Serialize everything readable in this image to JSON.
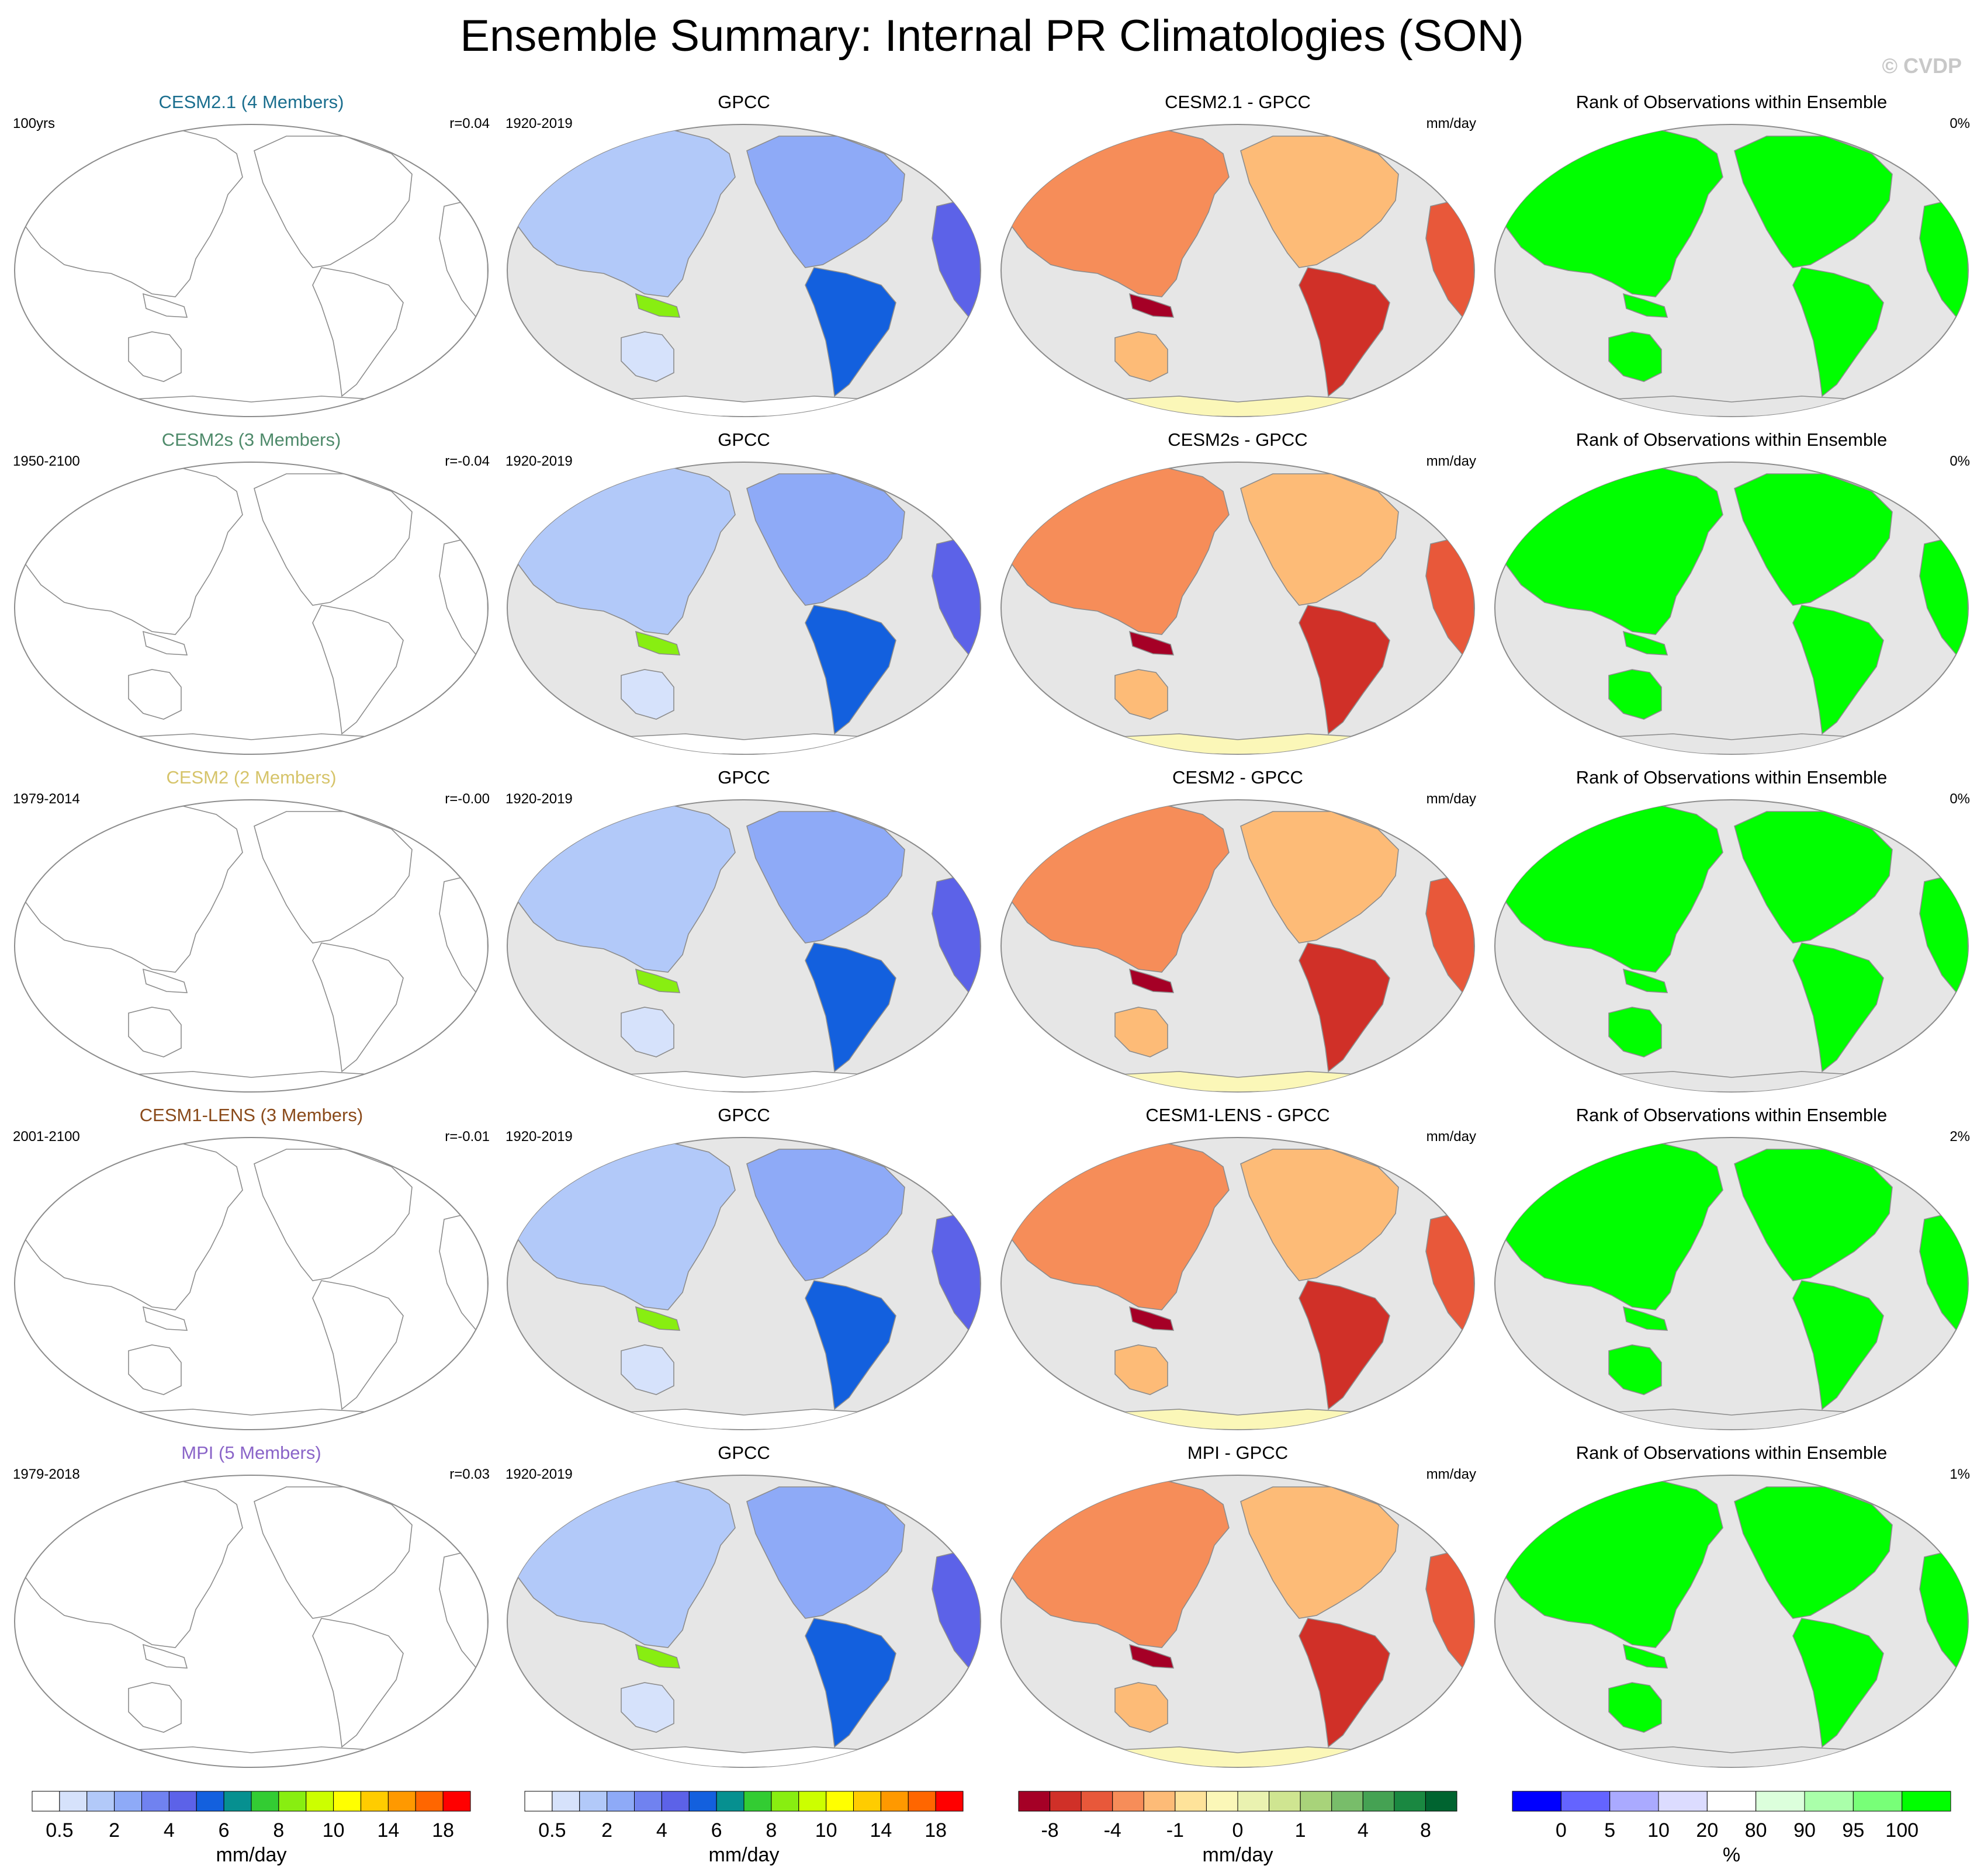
{
  "title": "Ensemble Summary: Internal PR Climatologies (SON)",
  "watermark": "© CVDP",
  "colors": {
    "ocean": "#e6e6e6",
    "coast": "#8c8c8c",
    "rank_land": "#00ff00"
  },
  "chart_data": [
    {
      "type": "heatmap",
      "rows": [
        {
          "title": "CESM2.1 (4 Members)",
          "title_color": "#1a6e8e",
          "period": "100yrs",
          "r": "r=0.04"
        },
        {
          "title": "CESM2s (3 Members)",
          "title_color": "#4e8a6a",
          "period": "1950-2100",
          "r": "r=-0.04"
        },
        {
          "title": "CESM2 (2 Members)",
          "title_color": "#d6c46a",
          "period": "1979-2014",
          "r": "r=-0.00"
        },
        {
          "title": "CESM1-LENS (3 Members)",
          "title_color": "#8a4a1a",
          "period": "2001-2100",
          "r": "r=-0.01"
        },
        {
          "title": "MPI (5 Members)",
          "title_color": "#8a64c8",
          "period": "1979-2018",
          "r": "r=0.03"
        }
      ],
      "colorbar": {
        "colors": [
          "#ffffff",
          "#d6e2fb",
          "#b2c9f9",
          "#8eaaf7",
          "#7082f0",
          "#5c62e8",
          "#1360de",
          "#069090",
          "#33cc33",
          "#88ee11",
          "#ccff00",
          "#ffff00",
          "#ffcc00",
          "#ff9900",
          "#ff6600",
          "#ff0000"
        ],
        "labels": [
          "0.5",
          "2",
          "4",
          "6",
          "8",
          "10",
          "14",
          "18"
        ],
        "units": "mm/day"
      }
    },
    {
      "type": "heatmap",
      "rows": [
        {
          "title": "GPCC",
          "period": "1920-2019"
        },
        {
          "title": "GPCC",
          "period": "1920-2019"
        },
        {
          "title": "GPCC",
          "period": "1920-2019"
        },
        {
          "title": "GPCC",
          "period": "1920-2019"
        },
        {
          "title": "GPCC",
          "period": "1920-2019"
        }
      ],
      "colorbar": {
        "colors": [
          "#ffffff",
          "#d6e2fb",
          "#b2c9f9",
          "#8eaaf7",
          "#7082f0",
          "#5c62e8",
          "#1360de",
          "#069090",
          "#33cc33",
          "#88ee11",
          "#ccff00",
          "#ffff00",
          "#ffcc00",
          "#ff9900",
          "#ff6600",
          "#ff0000"
        ],
        "labels": [
          "0.5",
          "2",
          "4",
          "6",
          "8",
          "10",
          "14",
          "18"
        ],
        "units": "mm/day"
      }
    },
    {
      "type": "heatmap",
      "rows": [
        {
          "title": "CESM2.1 - GPCC",
          "units": "mm/day"
        },
        {
          "title": "CESM2s - GPCC",
          "units": "mm/day"
        },
        {
          "title": "CESM2 - GPCC",
          "units": "mm/day"
        },
        {
          "title": "CESM1-LENS - GPCC",
          "units": "mm/day"
        },
        {
          "title": "MPI - GPCC",
          "units": "mm/day"
        }
      ],
      "colorbar": {
        "colors": [
          "#a50026",
          "#d03028",
          "#e8583a",
          "#f68d59",
          "#fdbb77",
          "#fee39a",
          "#fbf7b8",
          "#eaf2b0",
          "#cfe591",
          "#a8d37a",
          "#78bd6a",
          "#45a253",
          "#1a8841",
          "#006430"
        ],
        "labels": [
          "-8",
          "-4",
          "-1",
          "0",
          "1",
          "4",
          "8"
        ],
        "units": "mm/day"
      }
    },
    {
      "type": "heatmap",
      "rows": [
        {
          "title": "Rank of Observations within Ensemble",
          "pct": "0%"
        },
        {
          "title": "Rank of Observations within Ensemble",
          "pct": "0%"
        },
        {
          "title": "Rank of Observations within Ensemble",
          "pct": "0%"
        },
        {
          "title": "Rank of Observations within Ensemble",
          "pct": "2%"
        },
        {
          "title": "Rank of Observations within Ensemble",
          "pct": "1%"
        }
      ],
      "colorbar": {
        "colors": [
          "#0000ff",
          "#6464ff",
          "#aaaaff",
          "#dcdcff",
          "#ffffff",
          "#dcffdc",
          "#aaffaa",
          "#78ff78",
          "#00ff00"
        ],
        "labels": [
          "0",
          "5",
          "10",
          "20",
          "80",
          "90",
          "95",
          "100"
        ],
        "units": "%"
      }
    }
  ]
}
